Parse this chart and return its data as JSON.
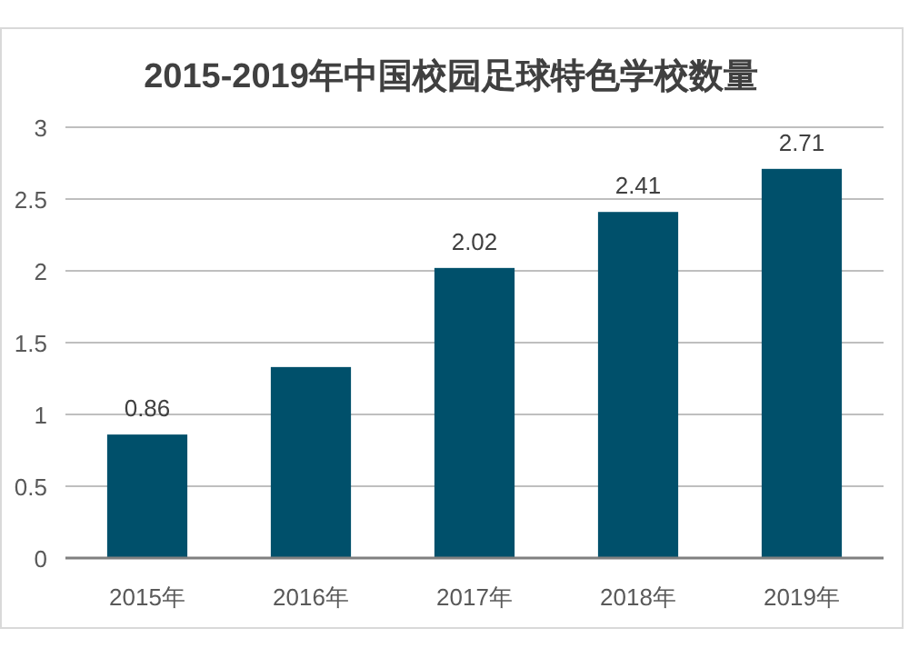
{
  "chart_data": {
    "type": "bar",
    "title": "2015-2019年中国校园足球特色学校数量",
    "categories": [
      "2015年",
      "2016年",
      "2017年",
      "2018年",
      "2019年"
    ],
    "values": [
      0.86,
      1.33,
      2.02,
      2.41,
      2.71
    ],
    "value_labels": [
      "0.86",
      null,
      "2.02",
      "2.41",
      "2.71"
    ],
    "color": "#00506b",
    "ylim": [
      0,
      3
    ],
    "yticks": [
      0,
      0.5,
      1,
      1.5,
      2,
      2.5,
      3
    ],
    "grid": "y"
  }
}
